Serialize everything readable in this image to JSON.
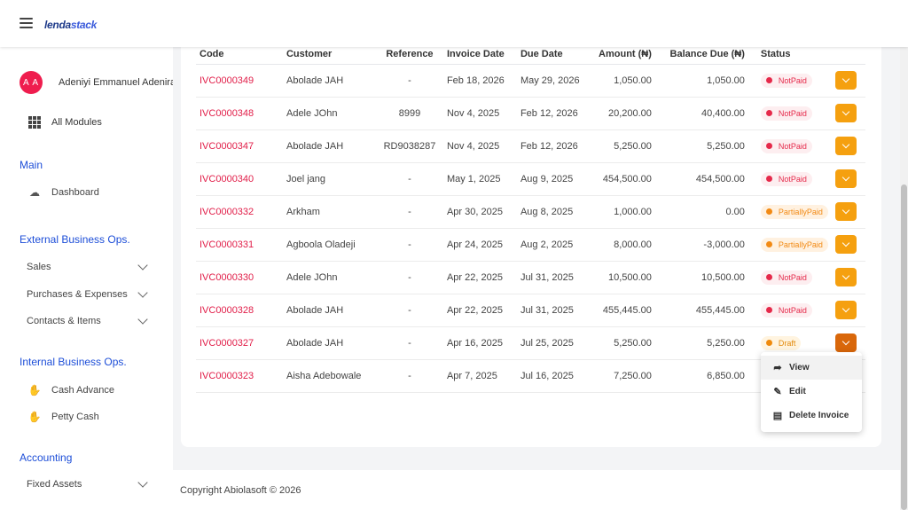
{
  "app": {
    "logo_main": "lenda",
    "logo_accent": "stack"
  },
  "user": {
    "initials": "A A",
    "name": "Adeniyi Emmanuel Adenira"
  },
  "sidebar": {
    "all_modules": "All Modules",
    "sections": {
      "main": "Main",
      "external": "External Business Ops.",
      "internal": "Internal Business Ops.",
      "accounting": "Accounting"
    },
    "items": {
      "dashboard": "Dashboard",
      "sales": "Sales",
      "purchases": "Purchases & Expenses",
      "contacts": "Contacts & Items",
      "cash_advance": "Cash Advance",
      "petty_cash": "Petty Cash",
      "fixed_assets": "Fixed Assets"
    }
  },
  "table": {
    "headers": [
      "Code",
      "Customer",
      "Reference",
      "Invoice Date",
      "Due Date",
      "Amount (₦)",
      "Balance Due (₦)",
      "Status"
    ],
    "rows": [
      {
        "code": "IVC0000349",
        "customer": "Abolade JAH",
        "reference": "-",
        "invoice_date": "Feb 18, 2026",
        "due_date": "May 29, 2026",
        "amount": "1,050.00",
        "balance": "1,050.00",
        "status": "NotPaid"
      },
      {
        "code": "IVC0000348",
        "customer": "Adele JOhn",
        "reference": "8999",
        "invoice_date": "Nov 4, 2025",
        "due_date": "Feb 12, 2026",
        "amount": "20,200.00",
        "balance": "40,400.00",
        "status": "NotPaid"
      },
      {
        "code": "IVC0000347",
        "customer": "Abolade JAH",
        "reference": "RD9038287",
        "invoice_date": "Nov 4, 2025",
        "due_date": "Feb 12, 2026",
        "amount": "5,250.00",
        "balance": "5,250.00",
        "status": "NotPaid"
      },
      {
        "code": "IVC0000340",
        "customer": "Joel jang",
        "reference": "-",
        "invoice_date": "May 1, 2025",
        "due_date": "Aug 9, 2025",
        "amount": "454,500.00",
        "balance": "454,500.00",
        "status": "NotPaid"
      },
      {
        "code": "IVC0000332",
        "customer": "Arkham",
        "reference": "-",
        "invoice_date": "Apr 30, 2025",
        "due_date": "Aug 8, 2025",
        "amount": "1,000.00",
        "balance": "0.00",
        "status": "PartiallyPaid"
      },
      {
        "code": "IVC0000331",
        "customer": "Agboola Oladeji",
        "reference": "-",
        "invoice_date": "Apr 24, 2025",
        "due_date": "Aug 2, 2025",
        "amount": "8,000.00",
        "balance": "-3,000.00",
        "status": "PartiallyPaid"
      },
      {
        "code": "IVC0000330",
        "customer": "Adele JOhn",
        "reference": "-",
        "invoice_date": "Apr 22, 2025",
        "due_date": "Jul 31, 2025",
        "amount": "10,500.00",
        "balance": "10,500.00",
        "status": "NotPaid"
      },
      {
        "code": "IVC0000328",
        "customer": "Abolade JAH",
        "reference": "-",
        "invoice_date": "Apr 22, 2025",
        "due_date": "Jul 31, 2025",
        "amount": "455,445.00",
        "balance": "455,445.00",
        "status": "NotPaid"
      },
      {
        "code": "IVC0000327",
        "customer": "Abolade JAH",
        "reference": "-",
        "invoice_date": "Apr 16, 2025",
        "due_date": "Jul 25, 2025",
        "amount": "5,250.00",
        "balance": "5,250.00",
        "status": "Draft"
      },
      {
        "code": "IVC0000323",
        "customer": "Aisha Adebowale",
        "reference": "-",
        "invoice_date": "Apr 7, 2025",
        "due_date": "Jul 16, 2025",
        "amount": "7,250.00",
        "balance": "6,850.00",
        "status": ""
      }
    ]
  },
  "action_menu": {
    "view": "View",
    "edit": "Edit",
    "delete": "Delete Invoice"
  },
  "footer": {
    "copyright": "Copyright Abiolasoft © 2026"
  },
  "colors": {
    "accent": "#f5a00f",
    "code": "#e11d48",
    "section": "#1d4ed8",
    "avatar": "#ef1d4e"
  }
}
